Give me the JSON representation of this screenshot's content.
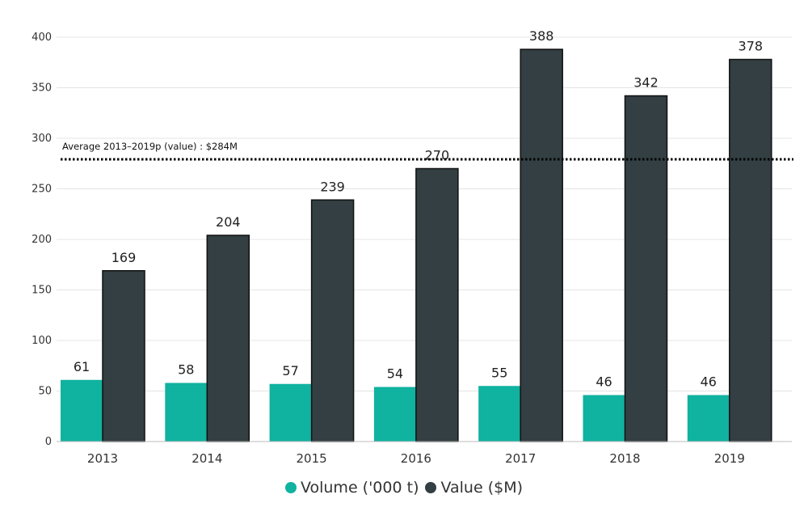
{
  "chart_data": {
    "type": "bar",
    "title": "",
    "xlabel": "",
    "ylabel": "",
    "ylim": [
      0,
      400
    ],
    "yticks": [
      0,
      50,
      100,
      150,
      200,
      250,
      300,
      350,
      400
    ],
    "categories": [
      "2013",
      "2014",
      "2015",
      "2016",
      "2017",
      "2018",
      "2019"
    ],
    "series": [
      {
        "name": "Volume ('000 t)",
        "color": "#10b2a0",
        "values": [
          61,
          58,
          57,
          54,
          55,
          46,
          46
        ]
      },
      {
        "name": "Value ($M)",
        "color": "#333f42",
        "values": [
          169,
          204,
          239,
          270,
          388,
          342,
          378
        ]
      }
    ],
    "reference_line": {
      "label": "Average 2013–2019p (value) : $284M",
      "value": 284,
      "style": "dotted"
    },
    "grid": true,
    "legend_position": "bottom-center"
  }
}
